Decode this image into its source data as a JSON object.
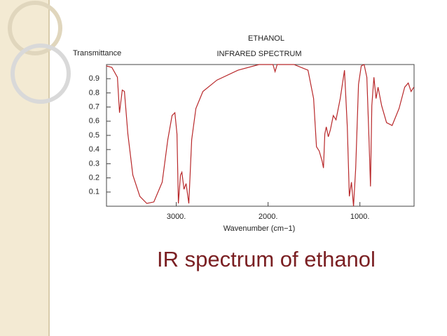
{
  "chart_data": {
    "type": "line",
    "title": "ETHANOL",
    "subtitle": "INFRARED SPECTRUM",
    "y_label": "Transmittance",
    "x_label": "Wavenumber (cm−1)",
    "caption": "IR spectrum of ethanol",
    "color": "#b8282a",
    "xlim": [
      3760,
      410
    ],
    "ylim": [
      0,
      1
    ],
    "xticks": [
      {
        "value": 3000,
        "label": "3000."
      },
      {
        "value": 2000,
        "label": "2000."
      },
      {
        "value": 1000,
        "label": "1000."
      }
    ],
    "yticks": [
      0.1,
      0.2,
      0.3,
      0.4,
      0.5,
      0.6,
      0.7,
      0.8,
      0.9
    ],
    "x": [
      3763,
      3702,
      3641,
      3618,
      3588,
      3565,
      3527,
      3473,
      3397,
      3321,
      3244,
      3153,
      3092,
      3046,
      3015,
      2992,
      2977,
      2954,
      2939,
      2916,
      2893,
      2863,
      2832,
      2786,
      2710,
      2557,
      2328,
      2099,
      1947,
      1924,
      1901,
      1718,
      1565,
      1504,
      1473,
      1443,
      1412,
      1397,
      1382,
      1366,
      1344,
      1321,
      1290,
      1260,
      1214,
      1168,
      1137,
      1115,
      1092,
      1069,
      1046,
      1015,
      985,
      954,
      924,
      901,
      885,
      870,
      847,
      824,
      802,
      763,
      710,
      649,
      573,
      512,
      473,
      443,
      412
    ],
    "values": [
      0.99,
      0.98,
      0.91,
      0.66,
      0.82,
      0.81,
      0.51,
      0.22,
      0.07,
      0.02,
      0.03,
      0.17,
      0.47,
      0.64,
      0.66,
      0.51,
      0.02,
      0.22,
      0.24,
      0.12,
      0.16,
      0.02,
      0.47,
      0.69,
      0.81,
      0.89,
      0.96,
      1.0,
      1.0,
      0.95,
      1.0,
      1.0,
      0.96,
      0.76,
      0.42,
      0.39,
      0.32,
      0.27,
      0.51,
      0.56,
      0.49,
      0.54,
      0.64,
      0.61,
      0.76,
      0.96,
      0.56,
      0.07,
      0.17,
      0.0,
      0.27,
      0.86,
      0.99,
      1.0,
      0.91,
      0.47,
      0.14,
      0.71,
      0.91,
      0.76,
      0.84,
      0.71,
      0.59,
      0.57,
      0.69,
      0.84,
      0.87,
      0.81,
      0.84
    ]
  }
}
